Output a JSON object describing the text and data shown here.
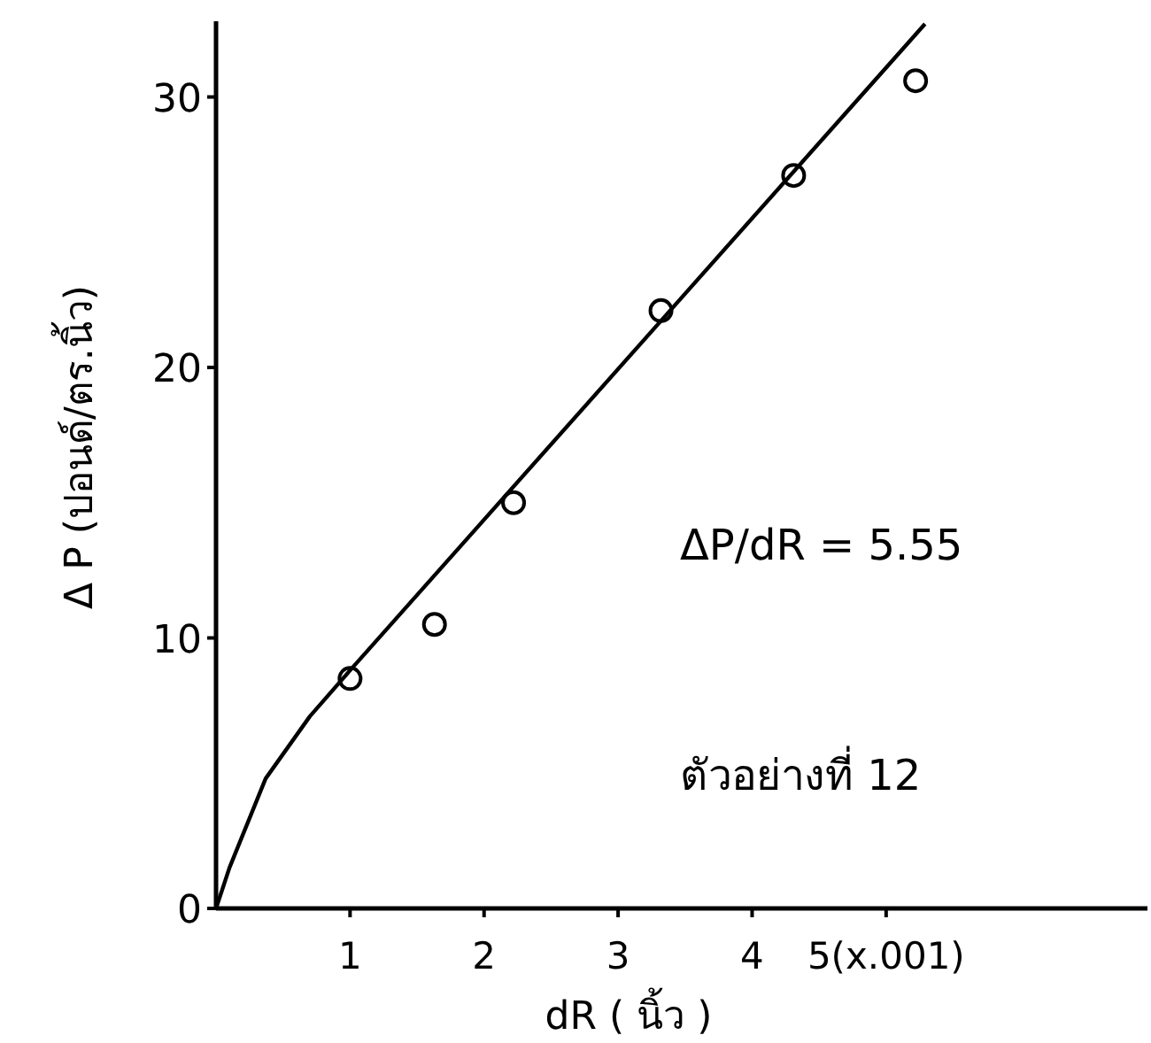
{
  "chart_data": {
    "type": "scatter",
    "xlabel": "dR ( นิ้ว )",
    "ylabel": "Δ P (ปอนด์/ตร.นิ้ว)",
    "xlim": [
      0,
      6.95
    ],
    "ylim": [
      0,
      32.8
    ],
    "xticks": [
      1,
      2,
      3,
      4,
      {
        "value": 5,
        "label": "5(x.001)"
      }
    ],
    "yticks": [
      0,
      10,
      20,
      30
    ],
    "grid": false,
    "series": [
      {
        "marker": "circle",
        "color": "#000000",
        "x": [
          1.0,
          1.63,
          2.22,
          3.32,
          4.31,
          5.22
        ],
        "values": [
          8.5,
          10.5,
          15.0,
          22.1,
          27.1,
          30.6
        ]
      },
      {
        "type": "line",
        "marker": "none",
        "line_style": "solid",
        "color": "#000000",
        "x": [
          0,
          0.1,
          0.37,
          0.7,
          1.0,
          5.29
        ],
        "values": [
          0,
          1.5,
          4.8,
          7.1,
          8.8,
          32.7
        ]
      }
    ],
    "annotations": [
      {
        "text": "ΔP/dR = 5.55"
      },
      {
        "text": "ตัวอย่างที่ 12"
      }
    ]
  }
}
